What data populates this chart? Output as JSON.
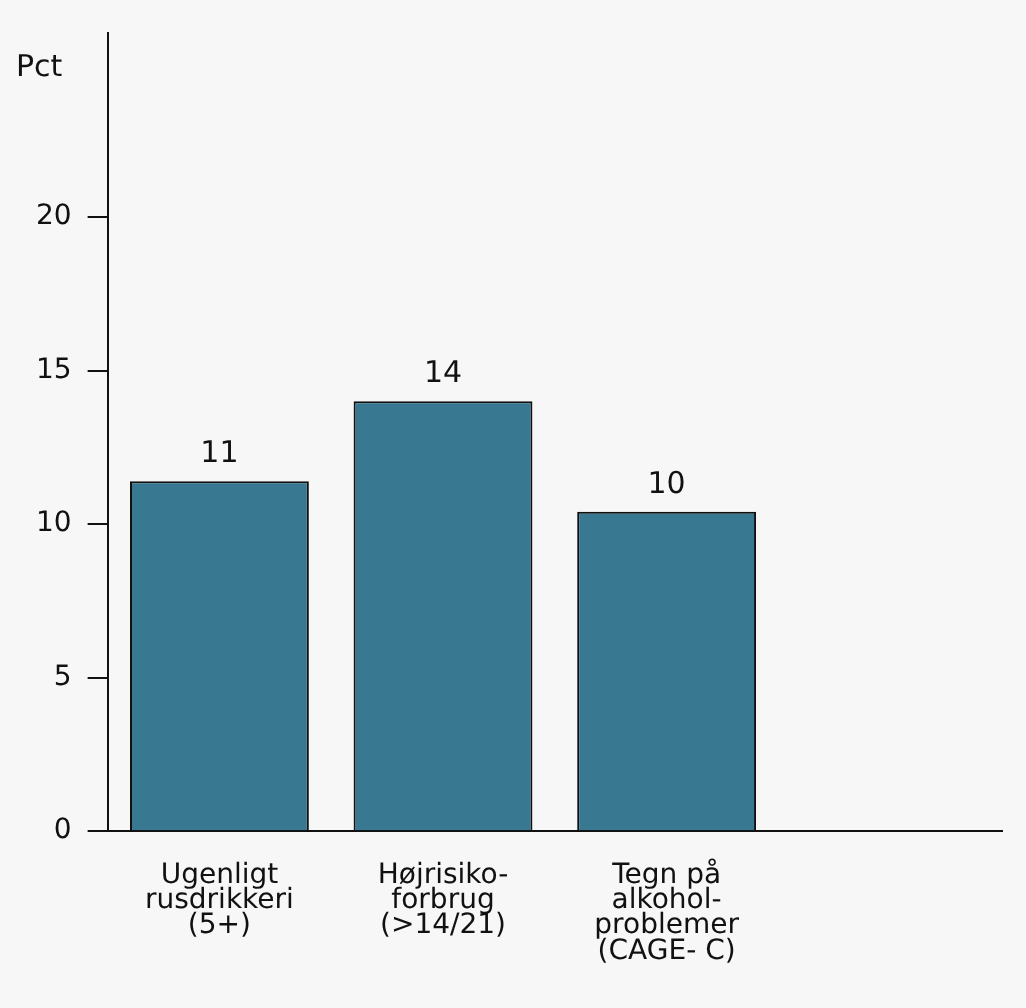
{
  "chart_data": {
    "type": "bar",
    "ylabel": "Pct",
    "categories": [
      "Ugenligt\nrusdrikkeri\n(5+)",
      "Højrisiko-\nforbrug\n(>14/21)",
      "Tegn på\nalkohol-\nproblemer\n(CAGE- C)",
      null
    ],
    "values": [
      11.4,
      14,
      10.4,
      null
    ],
    "value_labels": [
      "11",
      "14",
      "10",
      null
    ],
    "color": "#387890",
    "ylim": [
      0,
      26
    ],
    "yticks": [
      0,
      5,
      10,
      15,
      20
    ],
    "grid": false,
    "legend": false
  }
}
